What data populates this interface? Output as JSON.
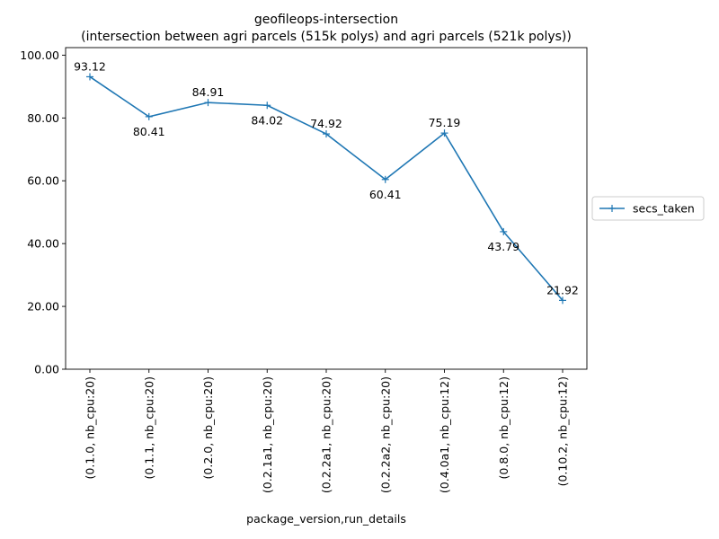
{
  "chart_data": {
    "type": "line",
    "title": "geofileops-intersection",
    "subtitle": "(intersection between agri parcels (515k polys) and agri parcels (521k polys))",
    "xlabel": "package_version,run_details",
    "ylabel": "",
    "categories": [
      "(0.1.0, nb_cpu:20)",
      "(0.1.1, nb_cpu:20)",
      "(0.2.0, nb_cpu:20)",
      "(0.2.1a1, nb_cpu:20)",
      "(0.2.2a1, nb_cpu:20)",
      "(0.2.2a2, nb_cpu:20)",
      "(0.4.0a1, nb_cpu:12)",
      "(0.8.0, nb_cpu:12)",
      "(0.10.2, nb_cpu:12)"
    ],
    "series": [
      {
        "name": "secs_taken",
        "values": [
          93.12,
          80.41,
          84.91,
          84.02,
          74.92,
          60.41,
          75.19,
          43.79,
          21.92
        ],
        "color": "#1f77b4",
        "marker": "plus"
      }
    ],
    "data_labels": [
      "93.12",
      "80.41",
      "84.91",
      "84.02",
      "74.92",
      "60.41",
      "75.19",
      "43.79",
      "21.92"
    ],
    "label_positions": [
      "above",
      "below",
      "above",
      "below",
      "above",
      "below",
      "above",
      "below",
      "above"
    ],
    "yticks": [
      "0.00",
      "20.00",
      "40.00",
      "60.00",
      "80.00",
      "100.00"
    ],
    "ytick_values": [
      0,
      20,
      40,
      60,
      80,
      100
    ],
    "ylim": [
      0,
      102.4
    ],
    "grid": false,
    "legend_position": "right-outside"
  }
}
